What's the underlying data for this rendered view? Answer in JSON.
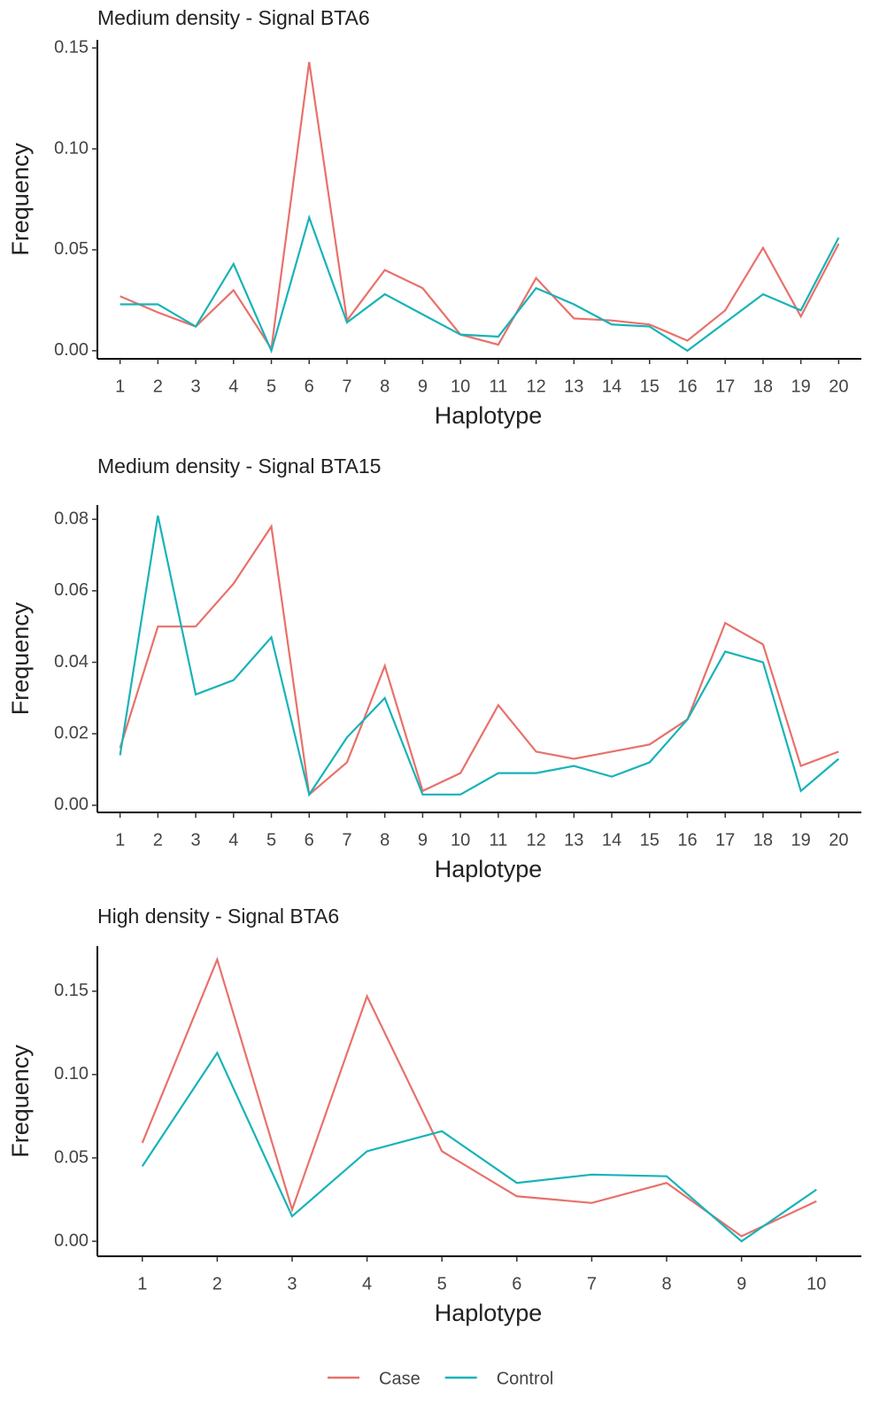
{
  "chart_data": [
    {
      "type": "line",
      "title": "Medium density - Signal BTA6",
      "x_label": "Haplotype",
      "y_label": "Frequency",
      "categories": [
        "1",
        "2",
        "3",
        "4",
        "5",
        "6",
        "7",
        "8",
        "9",
        "10",
        "11",
        "12",
        "13",
        "14",
        "15",
        "16",
        "17",
        "18",
        "19",
        "20"
      ],
      "series": [
        {
          "name": "Case",
          "color": "#e8716b",
          "values": [
            0.027,
            0.019,
            0.012,
            0.03,
            0.001,
            0.143,
            0.015,
            0.04,
            0.031,
            0.008,
            0.003,
            0.036,
            0.016,
            0.015,
            0.013,
            0.005,
            0.02,
            0.051,
            0.017,
            0.053
          ]
        },
        {
          "name": "Control",
          "color": "#17b3b8",
          "values": [
            0.023,
            0.023,
            0.012,
            0.043,
            0.0,
            0.066,
            0.014,
            0.028,
            0.018,
            0.008,
            0.007,
            0.031,
            0.023,
            0.013,
            0.012,
            0.0,
            0.014,
            0.028,
            0.02,
            0.056
          ]
        }
      ],
      "ylim": [
        -0.004,
        0.154
      ],
      "yticks": [
        {
          "value": 0,
          "label": "0.00"
        },
        {
          "value": 0.05,
          "label": "0.05"
        },
        {
          "value": 0.1,
          "label": "0.10"
        },
        {
          "value": 0.15,
          "label": "0.15"
        }
      ]
    },
    {
      "type": "line",
      "title": "Medium density - Signal BTA15",
      "x_label": "Haplotype",
      "y_label": "Frequency",
      "categories": [
        "1",
        "2",
        "3",
        "4",
        "5",
        "6",
        "7",
        "8",
        "9",
        "10",
        "11",
        "12",
        "13",
        "14",
        "15",
        "16",
        "17",
        "18",
        "19",
        "20"
      ],
      "series": [
        {
          "color": "#e8716b",
          "values": [
            0.016,
            0.05,
            0.05,
            0.062,
            0.078,
            0.003,
            0.012,
            0.039,
            0.004,
            0.009,
            0.028,
            0.015,
            0.013,
            0.015,
            0.017,
            0.024,
            0.051,
            0.045,
            0.011,
            0.015
          ]
        },
        {
          "color": "#17b3b8",
          "values": [
            0.014,
            0.081,
            0.031,
            0.035,
            0.047,
            0.003,
            0.019,
            0.03,
            0.003,
            0.003,
            0.009,
            0.009,
            0.011,
            0.008,
            0.012,
            0.024,
            0.043,
            0.04,
            0.004,
            0.013
          ]
        }
      ],
      "ylim": [
        -0.002,
        0.084
      ],
      "yticks": [
        {
          "value": 0,
          "label": "0.00"
        },
        {
          "value": 0.02,
          "label": "0.02"
        },
        {
          "value": 0.04,
          "label": "0.04"
        },
        {
          "value": 0.06,
          "label": "0.06"
        },
        {
          "value": 0.08,
          "label": "0.08"
        }
      ]
    },
    {
      "type": "line",
      "title": "High density - Signal BTA6",
      "x_label": "Haplotype",
      "y_label": "Frequency",
      "categories": [
        "1",
        "2",
        "3",
        "4",
        "5",
        "6",
        "7",
        "8",
        "9",
        "10"
      ],
      "series": [
        {
          "color": "#e8716b",
          "values": [
            0.059,
            0.169,
            0.019,
            0.147,
            0.054,
            0.027,
            0.023,
            0.035,
            0.003,
            0.024
          ]
        },
        {
          "color": "#17b3b8",
          "values": [
            0.045,
            0.113,
            0.015,
            0.054,
            0.066,
            0.035,
            0.04,
            0.039,
            0.0,
            0.031
          ]
        }
      ],
      "ylim": [
        -0.009,
        0.177
      ],
      "yticks": [
        {
          "value": 0,
          "label": "0.00"
        },
        {
          "value": 0.05,
          "label": "0.05"
        },
        {
          "value": 0.1,
          "label": "0.10"
        },
        {
          "value": 0.15,
          "label": "0.15"
        }
      ]
    }
  ]
}
